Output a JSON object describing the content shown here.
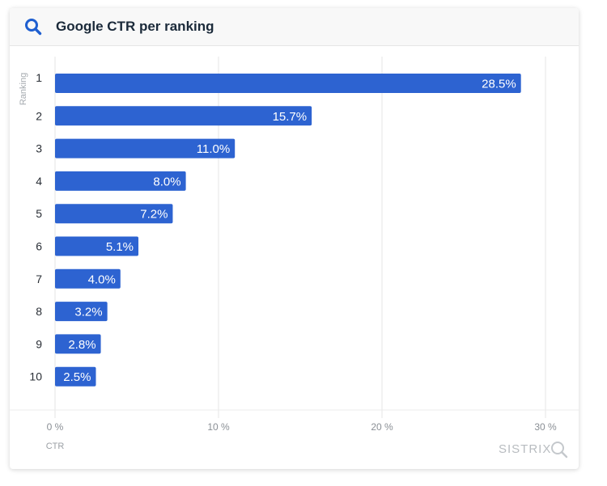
{
  "header": {
    "title": "Google CTR per ranking",
    "icon": "search-icon"
  },
  "brand": {
    "name": "SISTRIX"
  },
  "colors": {
    "bar": "#2d63d1",
    "icon": "#1f5fd0",
    "grid": "#e5e5e5",
    "axis_text": "#8a8f95"
  },
  "chart_data": {
    "type": "bar",
    "orientation": "horizontal",
    "title": "Google CTR per ranking",
    "xlabel": "CTR",
    "ylabel": "Ranking",
    "categories": [
      "1",
      "2",
      "3",
      "4",
      "5",
      "6",
      "7",
      "8",
      "9",
      "10"
    ],
    "values": [
      28.5,
      15.7,
      11.0,
      8.0,
      7.2,
      5.1,
      4.0,
      3.2,
      2.8,
      2.5
    ],
    "value_labels": [
      "28.5%",
      "15.7%",
      "11.0%",
      "8.0%",
      "7.2%",
      "5.1%",
      "4.0%",
      "3.2%",
      "2.8%",
      "2.5%"
    ],
    "xlim": [
      0,
      30
    ],
    "x_ticks": [
      0,
      10,
      20,
      30
    ],
    "x_tick_labels": [
      "0 %",
      "10 %",
      "20 %",
      "30 %"
    ],
    "grid": true,
    "legend": "none"
  }
}
